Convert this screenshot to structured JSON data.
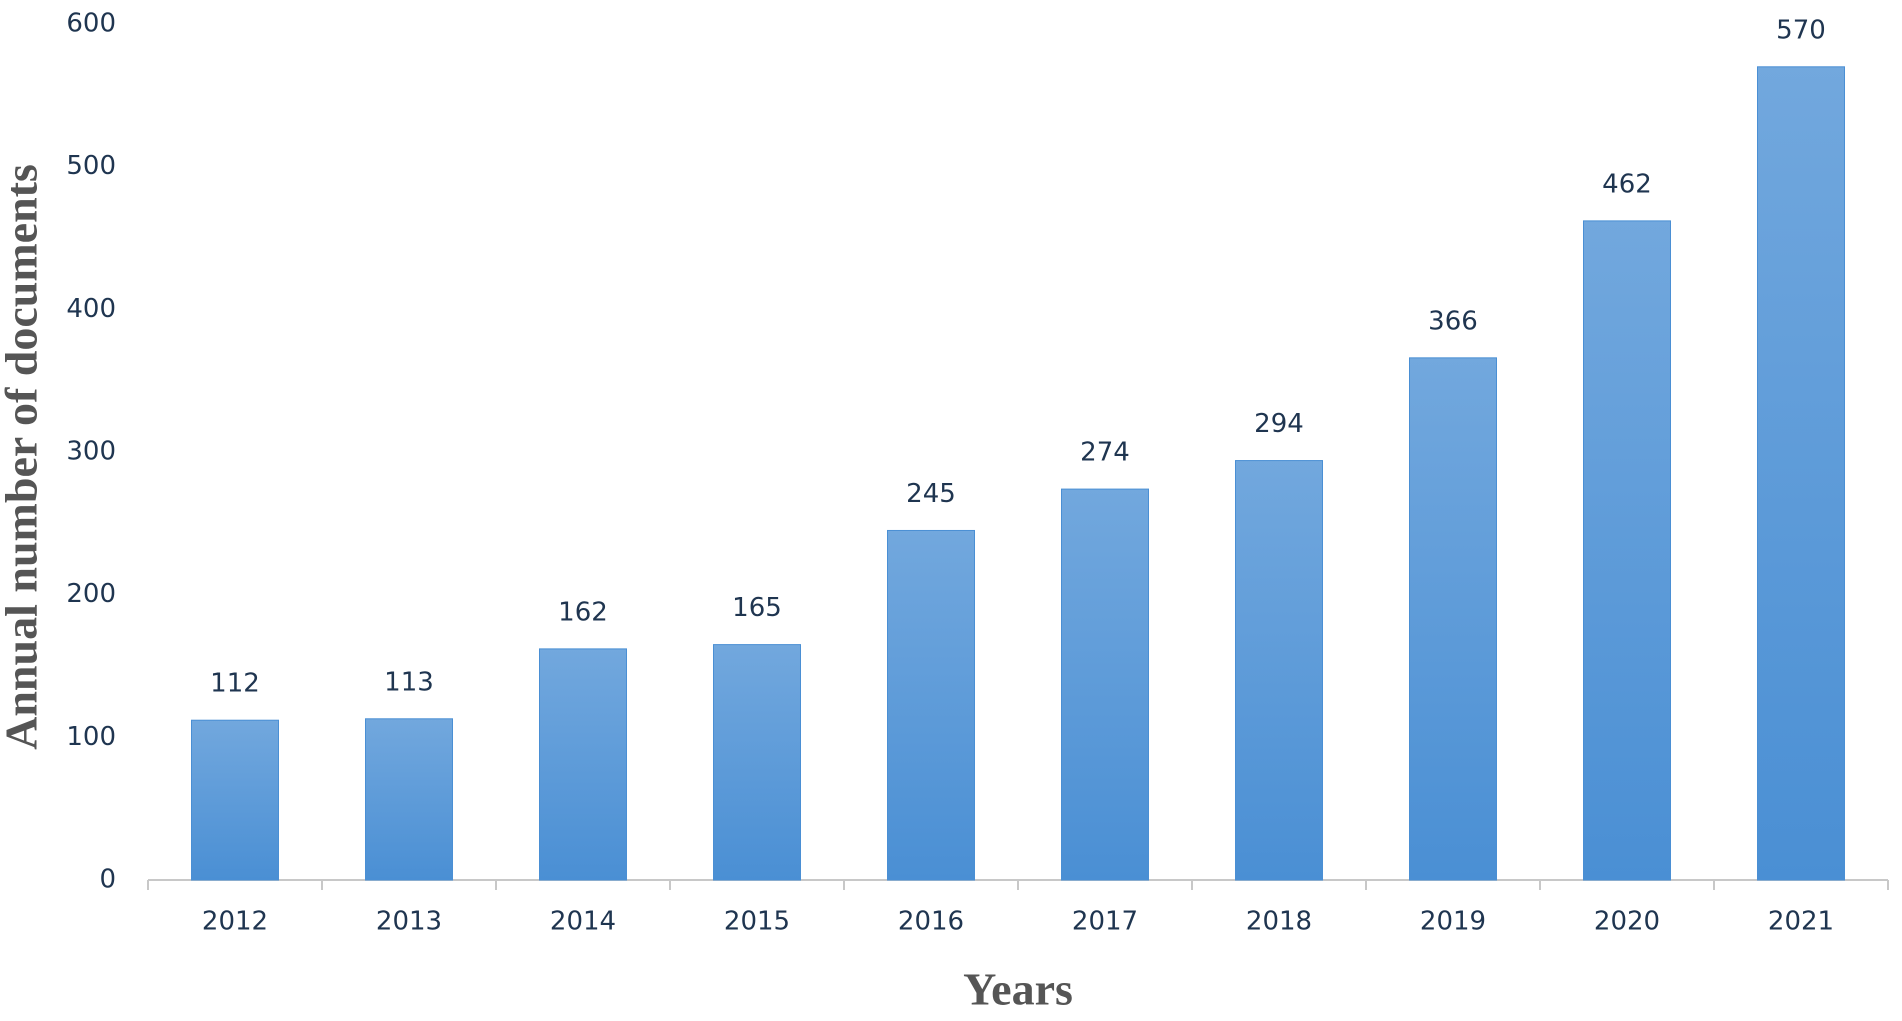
{
  "chart_data": {
    "type": "bar",
    "x_label": "Years",
    "y_label": "Annual number of documents",
    "categories": [
      "2012",
      "2013",
      "2014",
      "2015",
      "2016",
      "2017",
      "2018",
      "2019",
      "2020",
      "2021"
    ],
    "values": [
      112,
      113,
      162,
      165,
      245,
      274,
      294,
      366,
      462,
      570
    ],
    "color": "#4a8fd4",
    "ylim": [
      0,
      600
    ],
    "yticks": [
      0,
      100,
      200,
      300,
      400,
      500,
      600
    ],
    "grid": false
  }
}
